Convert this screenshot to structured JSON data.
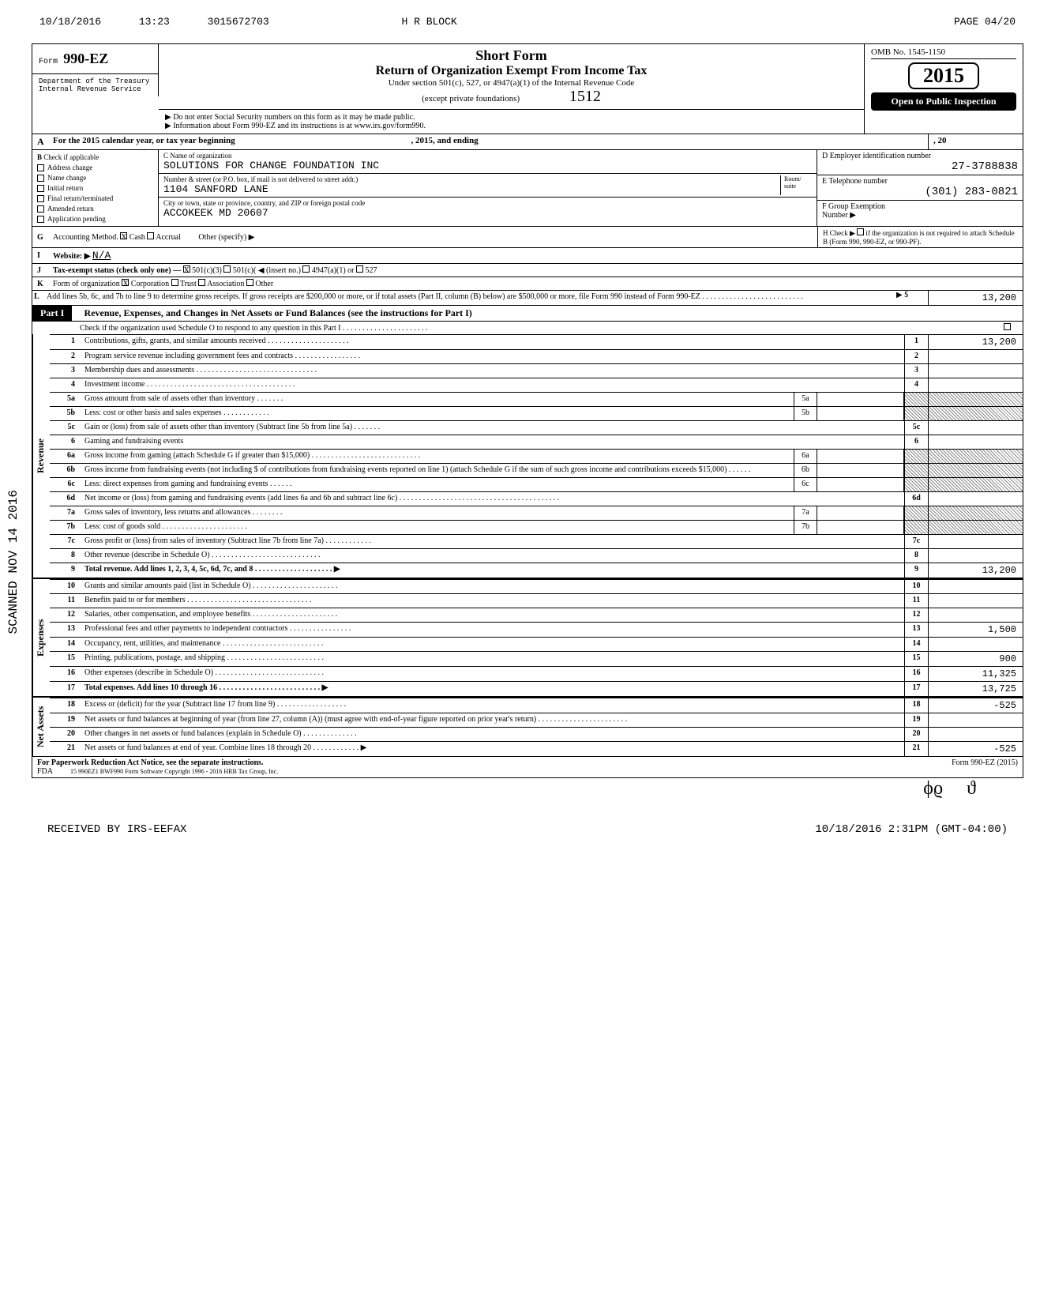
{
  "fax": {
    "date": "10/18/2016",
    "time": "13:23",
    "number": "3015672703",
    "from": "H R BLOCK",
    "page": "PAGE   04/20"
  },
  "header": {
    "form_prefix": "Form",
    "form_num": "990-EZ",
    "short": "Short Form",
    "main": "Return of Organization Exempt From Income Tax",
    "sub1": "Under section 501(c), 527, or 4947(a)(1) of the Internal Revenue Code",
    "sub2": "(except private foundations)",
    "sub3": "▶ Do not enter Social Security numbers on this form as it may be made public.",
    "sub4": "▶ Information about Form 990-EZ and its instructions is at www.irs.gov/form990.",
    "handwritten": "1512",
    "omb": "OMB No. 1545-1150",
    "year": "2015",
    "open": "Open to Public Inspection",
    "dept1": "Department of the Treasury",
    "dept2": "Internal Revenue Service"
  },
  "row_a": {
    "label": "A",
    "text": "For the 2015 calendar year, or tax year beginning",
    "mid": ", 2015, and ending",
    "end": ", 20"
  },
  "checks": {
    "label": "B",
    "title": "Check if applicable",
    "items": [
      "Address change",
      "Name change",
      "Initial return",
      "Final return/terminated",
      "Amended return",
      "Application pending"
    ]
  },
  "entity": {
    "c_label": "C  Name of organization",
    "org_name": "SOLUTIONS FOR CHANGE FOUNDATION INC",
    "addr_label": "Number & street (or P.O. box, if mail is not delivered to street addr.)",
    "room": "Room/\nsuite",
    "street": "1104 SANFORD LANE",
    "city_label": "City or town, state or province, country, and ZIP or foreign postal code",
    "city": "ACCOKEEK MD 20607",
    "d_label": "D  Employer identification number",
    "ein": "27-3788838",
    "e_label": "E  Telephone number",
    "phone": "(301) 283-0821",
    "f_label": "F  Group Exemption",
    "f_sub": "Number  ▶"
  },
  "row_g": {
    "label": "G",
    "text": "Accounting Method.",
    "cash": "Cash",
    "accrual": "Accrual",
    "other": "Other (specify) ▶",
    "h_label": "H  Check ▶",
    "h_text": "if the organization is not required to attach Schedule B (Form 990, 990-EZ, or 990-PF)."
  },
  "row_i": {
    "label": "I",
    "text": "Website: ▶",
    "val": "N/A"
  },
  "row_j": {
    "label": "J",
    "text": "Tax-exempt status (check only one) —",
    "opts": [
      "501(c)(3)",
      "501(c)(",
      "◀ (insert no.)",
      "4947(a)(1) or",
      "527"
    ]
  },
  "row_k": {
    "label": "K",
    "text": "Form of organization",
    "opts": [
      "Corporation",
      "Trust",
      "Association",
      "Other"
    ]
  },
  "row_l": {
    "label": "L",
    "text": "Add lines 5b, 6c, and 7b to line 9 to determine gross receipts. If gross receipts are $200,000 or more, or if total assets (Part II, column (B) below) are $500,000 or more, file Form 990 instead of Form 990-EZ . . . . . . . . . . . . . . . . . . . . . . . . . .",
    "arrow": "▶  $",
    "val": "13,200"
  },
  "part1": {
    "label": "Part I",
    "title": "Revenue, Expenses, and Changes in Net Assets or Fund Balances (see the instructions for Part I)",
    "check_line": "Check if the organization used Schedule O to respond to any question in this Part I . . . . . . . . . . . . . . . . . . . . . ."
  },
  "sections": {
    "revenue": "Revenue",
    "expenses": "Expenses",
    "netassets": "Net Assets"
  },
  "lines": {
    "1": {
      "d": "Contributions, gifts, grants, and similar amounts received . . . . . . . . . . . . . . . . . . . . .",
      "v": "13,200"
    },
    "2": {
      "d": "Program service revenue including government fees and contracts . . . . . . . . . . . . . . . . .",
      "v": ""
    },
    "3": {
      "d": "Membership dues and assessments . . . . . . . . . . . . . . . . . . . . . . . . . . . . . . .",
      "v": ""
    },
    "4": {
      "d": "Investment income . . . . . . . . . . . . . . . . . . . . . . . . . . . . . . . . . . . . . .",
      "v": ""
    },
    "5a": {
      "d": "Gross amount from sale of assets other than inventory . . . . . . .",
      "m": "5a"
    },
    "5b": {
      "d": "Less: cost or other basis and sales expenses . . . . . . . . . . . .",
      "m": "5b"
    },
    "5c": {
      "d": "Gain or (loss) from sale of assets other than inventory (Subtract line 5b from line 5a) . . . . . . .",
      "v": ""
    },
    "6": {
      "d": "Gaming and fundraising events"
    },
    "6a": {
      "d": "Gross income from gaming (attach Schedule G if greater than $15,000) . . . . . . . . . . . . . . . . . . . . . . . . . . . .",
      "m": "6a"
    },
    "6b": {
      "d": "Gross income from fundraising events (not including   $                  of contributions from fundraising events reported on line 1) (attach Schedule G if the sum of such gross income and contributions exceeds $15,000) . . . . . .",
      "m": "6b"
    },
    "6c": {
      "d": "Less: direct expenses from gaming and fundraising events . . . . . .",
      "m": "6c"
    },
    "6d": {
      "d": "Net income or (loss) from gaming and fundraising events (add lines 6a and 6b and subtract line 6c) . . . . . . . . . . . . . . . . . . . . . . . . . . . . . . . . . . . . . . . . .",
      "v": ""
    },
    "7a": {
      "d": "Gross sales of inventory, less returns and allowances . . . . . . . .",
      "m": "7a"
    },
    "7b": {
      "d": "Less: cost of goods sold . . . . . . . . . . . . . . . . . . . . . .",
      "m": "7b"
    },
    "7c": {
      "d": "Gross profit or (loss) from sales of inventory (Subtract line 7b from line 7a) . . . . . . . . . . . .",
      "v": ""
    },
    "8": {
      "d": "Other revenue (describe in Schedule O) . . . . . . . . . . . . . . . . . . . . . . . . . . . .",
      "v": ""
    },
    "9": {
      "d": "Total revenue. Add lines 1, 2, 3, 4, 5c, 6d, 7c, and 8 . . . . . . . . . . . . . . . . . . . .  ▶",
      "v": "13,200",
      "bold": true
    },
    "10": {
      "d": "Grants and similar amounts paid (list in Schedule O) . . . . . . . . . . . . . . . . . . . . . .",
      "v": ""
    },
    "11": {
      "d": "Benefits paid to or for members . . . . . . . . . . . . . . . . . . . . . . . . . . . . . . . .",
      "v": ""
    },
    "12": {
      "d": "Salaries, other compensation, and employee benefits . . . . . . . . . . . . . . . . . . . . . .",
      "v": ""
    },
    "13": {
      "d": "Professional fees and other payments to independent contractors . . . . . . . . . . . . . . . .",
      "v": "1,500"
    },
    "14": {
      "d": "Occupancy, rent, utilities, and maintenance . . . . . . . . . . . . . . . . . . . . . . . . . .",
      "v": ""
    },
    "15": {
      "d": "Printing, publications, postage, and shipping . . . . . . . . . . . . . . . . . . . . . . . . .",
      "v": "900"
    },
    "16": {
      "d": "Other expenses (describe in Schedule O) . . . . . . . . . . . . . . . . . . . . . . . . . . . .",
      "v": "11,325"
    },
    "17": {
      "d": "Total expenses. Add lines 10 through 16 . . . . . . . . . . . . . . . . . . . . . . . . . .  ▶",
      "v": "13,725",
      "bold": true
    },
    "18": {
      "d": "Excess or (deficit) for the year (Subtract line 17 from line 9) . . . . . . . . . . . . . . . . . .",
      "v": "-525"
    },
    "19": {
      "d": "Net assets or fund balances at beginning of year (from line 27, column (A)) (must agree with end-of-year figure reported on prior year's return) . . . . . . . . . . . . . . . . . . . . . . .",
      "v": ""
    },
    "20": {
      "d": "Other changes in net assets or fund balances (explain in Schedule O) . . . . . . . . . . . . . .",
      "v": ""
    },
    "21": {
      "d": "Net assets or fund balances at end of year. Combine lines 18 through 20 . . . . . . . . . . . .  ▶",
      "v": "-525"
    }
  },
  "footer": {
    "pra": "For Paperwork Reduction Act Notice, see the separate instructions.",
    "fda": "FDA",
    "code": "15  990EZ1    BWF990    Form Software Copyright 1996 - 2016 HRB Tax Group, Inc.",
    "form": "Form 990-EZ (2015)"
  },
  "scanned": "SCANNED NOV 14 2016",
  "fax_footer": {
    "left": "RECEIVED BY IRS-EEFAX",
    "right": "10/18/2016 2:31PM (GMT-04:00)"
  }
}
